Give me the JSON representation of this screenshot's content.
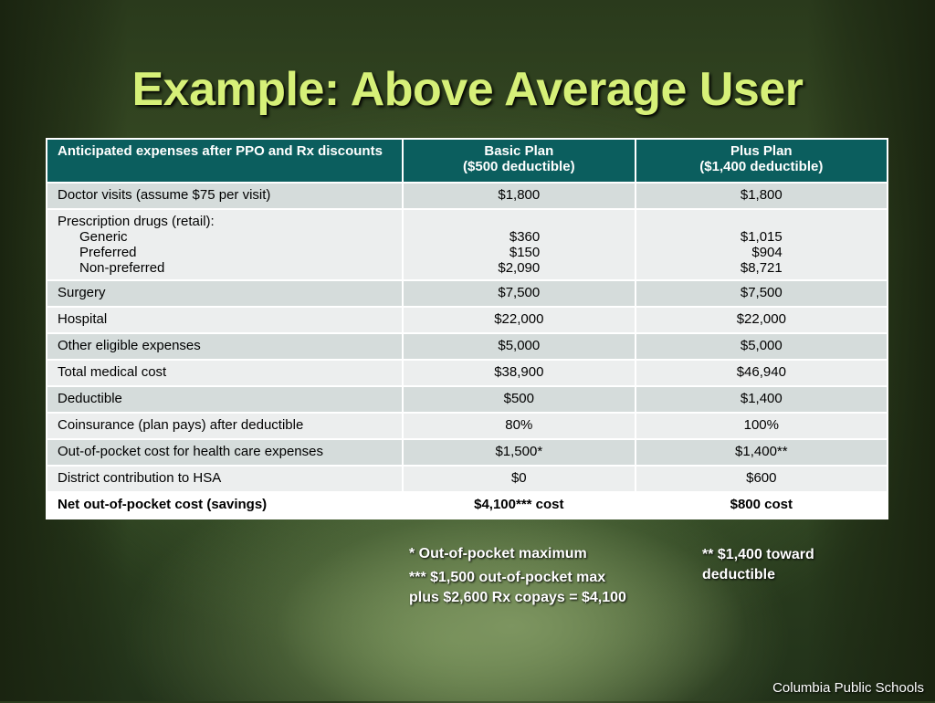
{
  "slide": {
    "title": "Example: Above Average User",
    "footer": "Columbia Public Schools"
  },
  "table": {
    "headers": {
      "label": "Anticipated expenses after PPO and Rx discounts",
      "basic_line1": "Basic Plan",
      "basic_line2": "($500 deductible)",
      "plus_line1": "Plus Plan",
      "plus_line2": "($1,400 deductible)"
    },
    "rows": [
      {
        "label": "Doctor visits (assume $75 per visit)",
        "basic": "$1,800",
        "plus": "$1,800"
      },
      {
        "label": "Surgery",
        "basic": "$7,500",
        "plus": "$7,500"
      },
      {
        "label": "Hospital",
        "basic": "$22,000",
        "plus": "$22,000"
      },
      {
        "label": "Other eligible expenses",
        "basic": "$5,000",
        "plus": "$5,000"
      },
      {
        "label": "Total medical cost",
        "basic": "$38,900",
        "plus": "$46,940"
      },
      {
        "label": "Deductible",
        "basic": "$500",
        "plus": "$1,400"
      },
      {
        "label": "Coinsurance (plan pays) after deductible",
        "basic": "80%",
        "plus": "100%"
      },
      {
        "label": "Out-of-pocket cost for health care expenses",
        "basic": "$1,500*",
        "plus": "$1,400**"
      },
      {
        "label": "District contribution to HSA",
        "basic": "$0",
        "plus": "$600"
      },
      {
        "label": "Net out-of-pocket cost (savings)",
        "basic": "$4,100*** cost",
        "plus": "$800 cost"
      }
    ],
    "rx": {
      "label": "Prescription drugs (retail):",
      "items": [
        {
          "label": "Generic",
          "basic": "$360",
          "plus": "$1,015"
        },
        {
          "label": "Preferred",
          "basic": "$150",
          "plus": "$904"
        },
        {
          "label": "Non-preferred",
          "basic": "$2,090",
          "plus": "$8,721"
        }
      ]
    }
  },
  "notes": {
    "oop_max": "* Out-of-pocket maximum",
    "rx_copays_line1": "*** $1,500 out-of-pocket max",
    "rx_copays_line2": "plus $2,600 Rx copays = $4,100",
    "toward_deductible_line1": "** $1,400 toward",
    "toward_deductible_line2": "deductible"
  },
  "colors": {
    "title": "#d6f078",
    "header_bg": "#0b5e5e",
    "row_dark": "#d5dcdb",
    "row_light": "#eceeee"
  }
}
